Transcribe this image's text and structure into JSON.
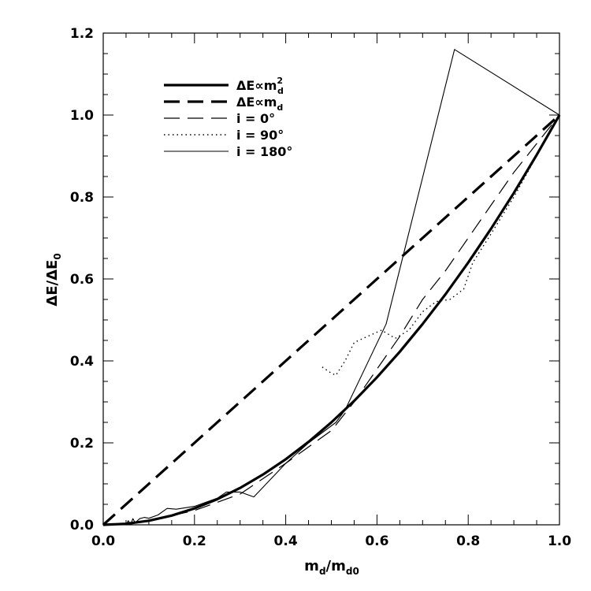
{
  "chart_data": {
    "type": "line",
    "title": "",
    "xlabel": {
      "main": "m",
      "sub": "d",
      "sep": "/",
      "main2": "m",
      "sub2": "d0"
    },
    "ylabel": {
      "main": "ΔE/ΔE",
      "sub": "0"
    },
    "xlim": [
      0.0,
      1.0
    ],
    "ylim": [
      0.0,
      1.2
    ],
    "xticks": [
      "0.0",
      "0.2",
      "0.4",
      "0.6",
      "0.8",
      "1.0"
    ],
    "yticks": [
      "0.0",
      "0.2",
      "0.4",
      "0.6",
      "0.8",
      "1.0",
      "1.2"
    ],
    "grid": false,
    "legend_placement": "top-left",
    "series": [
      {
        "name": "ΔE∝m_d^2",
        "legend_main": "ΔE∝m",
        "legend_sub": "d",
        "legend_sup": "2",
        "style": "solid-thick",
        "x": [
          0.0,
          0.05,
          0.1,
          0.15,
          0.2,
          0.25,
          0.3,
          0.35,
          0.4,
          0.45,
          0.5,
          0.55,
          0.6,
          0.65,
          0.7,
          0.75,
          0.8,
          0.85,
          0.9,
          0.95,
          1.0
        ],
        "y": [
          0.0,
          0.0025,
          0.01,
          0.0225,
          0.04,
          0.0625,
          0.09,
          0.1225,
          0.16,
          0.2025,
          0.25,
          0.3025,
          0.36,
          0.4225,
          0.49,
          0.5625,
          0.64,
          0.7225,
          0.81,
          0.9025,
          1.0
        ]
      },
      {
        "name": "ΔE∝m_d",
        "legend_main": "ΔE∝m",
        "legend_sub": "d",
        "legend_sup": "",
        "style": "dashed-thick",
        "x": [
          0.0,
          1.0
        ],
        "y": [
          0.0,
          1.0
        ]
      },
      {
        "name": "i = 0°",
        "legend_main": "i  =  0°",
        "legend_sub": "",
        "legend_sup": "",
        "style": "dashed-thin",
        "x": [
          0.05,
          0.1,
          0.2,
          0.3,
          0.4,
          0.5,
          0.55,
          0.6,
          0.65,
          0.7,
          0.75,
          0.8,
          0.85,
          0.9,
          0.95,
          1.0
        ],
        "y": [
          0.0,
          0.01,
          0.035,
          0.075,
          0.15,
          0.23,
          0.3,
          0.38,
          0.46,
          0.55,
          0.62,
          0.7,
          0.78,
          0.86,
          0.93,
          1.0
        ]
      },
      {
        "name": "i = 90°",
        "legend_main": "i  =  90°",
        "legend_sub": "",
        "legend_sup": "",
        "style": "dotted",
        "x": [
          0.48,
          0.5,
          0.51,
          0.53,
          0.55,
          0.58,
          0.61,
          0.64,
          0.67,
          0.7,
          0.73,
          0.76,
          0.79,
          0.81,
          0.85,
          0.9,
          0.95,
          1.0
        ],
        "y": [
          0.385,
          0.37,
          0.365,
          0.4,
          0.445,
          0.46,
          0.475,
          0.455,
          0.475,
          0.52,
          0.545,
          0.55,
          0.575,
          0.64,
          0.71,
          0.8,
          0.9,
          1.0
        ]
      },
      {
        "name": "i = 180°",
        "legend_main": "i  =  180°",
        "legend_sub": "",
        "legend_sup": "",
        "style": "solid-thin",
        "x": [
          0.0,
          0.05,
          0.055,
          0.06,
          0.065,
          0.07,
          0.08,
          0.09,
          0.1,
          0.12,
          0.14,
          0.16,
          0.2,
          0.25,
          0.27,
          0.3,
          0.33,
          0.4,
          0.45,
          0.51,
          0.53,
          0.62,
          0.77,
          1.0
        ],
        "y": [
          0.0,
          0.0,
          0.01,
          0.0,
          0.015,
          0.005,
          0.015,
          0.018,
          0.016,
          0.024,
          0.04,
          0.038,
          0.045,
          0.065,
          0.08,
          0.08,
          0.068,
          0.15,
          0.2,
          0.25,
          0.28,
          0.49,
          1.16,
          1.0
        ]
      }
    ]
  }
}
